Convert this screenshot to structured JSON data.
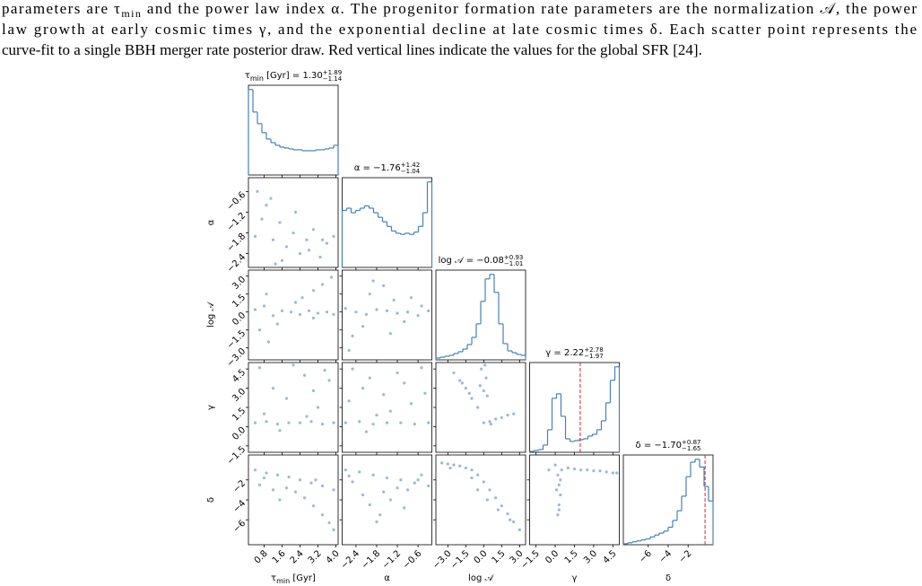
{
  "caption": {
    "line1": {
      "before": "parameters are τ",
      "sub": "min",
      "after": " and the power law index α. The progenitor formation rate parameters are the normalization 𝒜, the power"
    },
    "line2": "law growth at early cosmic times γ, and the exponential decline at late cosmic times δ. Each scatter point represents the",
    "line3": "curve-fit to a single BBH merger rate posterior draw. Red vertical lines indicate the values for the global SFR [24]."
  },
  "chart_data": {
    "type": "corner",
    "color": "#4682b4",
    "truth_color": "#d62728",
    "parameters": [
      {
        "label": {
          "main": "τ",
          "sub": "min",
          "unit": " [Gyr]"
        },
        "title": {
          "value": " = 1.30",
          "plus": "+1.89",
          "minus": "−1.14"
        },
        "lim": [
          0.1,
          4.1
        ],
        "ticks": [
          0.8,
          1.6,
          2.4,
          3.2,
          {
            "value": 4,
            "label": "4.0"
          }
        ],
        "bins": [
          0.1,
          0.3,
          0.5,
          0.7,
          0.9,
          1.1,
          1.3,
          1.5,
          1.7,
          1.9,
          2.1,
          2.3,
          2.5,
          2.7,
          2.9,
          3.1,
          3.3,
          3.5,
          3.7,
          3.9,
          4.1
        ],
        "counts": [
          95,
          70,
          57,
          47,
          40,
          36,
          33,
          31,
          30,
          29,
          28,
          28,
          27,
          27,
          27,
          28,
          28,
          29,
          30,
          33
        ],
        "pairs": []
      },
      {
        "label": {
          "main": "α"
        },
        "title": {
          "value": " = −1.76",
          "plus": "+1.42",
          "minus": "−1.04"
        },
        "lim": [
          -2.8,
          -0.2
        ],
        "ticks": [
          {
            "value": -2.4,
            "label": "−2.4"
          },
          {
            "value": -1.8,
            "label": "−1.8"
          },
          {
            "value": -1.2,
            "label": "−1.2"
          },
          {
            "value": -0.6,
            "label": "−0.6"
          }
        ],
        "bins": [
          -2.8,
          -2.67,
          -2.54,
          -2.41,
          -2.28,
          -2.15,
          -2.02,
          -1.89,
          -1.76,
          -1.63,
          -1.5,
          -1.37,
          -1.24,
          -1.11,
          -0.98,
          -0.85,
          -0.72,
          -0.59,
          -0.46,
          -0.33,
          -0.2
        ],
        "counts": [
          50,
          52,
          48,
          50,
          52,
          54,
          52,
          48,
          44,
          40,
          36,
          32,
          30,
          29,
          30,
          29,
          31,
          36,
          48,
          75
        ],
        "pairs": [
          {
            "x": [
              0.5,
              0.9,
              1.2,
              1.5,
              1.8,
              2.1,
              2.4,
              2.7,
              3.0,
              3.3,
              3.6,
              3.9,
              0.7,
              1.1,
              1.6,
              2.2,
              2.8,
              3.4,
              0.4,
              1.3
            ],
            "y": [
              -0.6,
              -1.0,
              -2.0,
              -1.5,
              -2.2,
              -1.8,
              -2.4,
              -2.0,
              -1.7,
              -2.5,
              -2.1,
              -1.9,
              -1.4,
              -0.8,
              -2.6,
              -1.2,
              -2.3,
              -2.0,
              -1.9,
              -2.7
            ]
          }
        ]
      },
      {
        "label": {
          "main": "log 𝒜"
        },
        "title": {
          "value": " = −0.08",
          "plus": "+0.93",
          "minus": "−1.01"
        },
        "lim": [
          -4,
          3.5
        ],
        "ticks": [
          {
            "value": -3,
            "label": "−3.0"
          },
          {
            "value": -1.5,
            "label": "−1.5"
          },
          {
            "value": 0,
            "label": "0.0"
          },
          1.5,
          {
            "value": 3,
            "label": "3.0"
          }
        ],
        "bins": [
          -4,
          -3.625,
          -3.25,
          -2.875,
          -2.5,
          -2.125,
          -1.75,
          -1.375,
          -1,
          -0.625,
          -0.25,
          0.125,
          0.5,
          0.875,
          1.25,
          1.625,
          2,
          2.375,
          2.75,
          3.125,
          3.5
        ],
        "counts": [
          2,
          3,
          4,
          5,
          7,
          9,
          12,
          17,
          25,
          40,
          65,
          90,
          95,
          75,
          40,
          18,
          10,
          8,
          6,
          5
        ],
        "pairs": [
          {
            "x": [
              0.4,
              0.8,
              1.2,
              1.6,
              2.0,
              2.4,
              2.8,
              3.2,
              3.6,
              3.9,
              2.5,
              3.0,
              3.4,
              3.8,
              0.6,
              1.0,
              1.4,
              2.2,
              0.9,
              3.0
            ],
            "y": [
              0.2,
              0.5,
              -0.3,
              0.1,
              0.0,
              -0.2,
              0.1,
              -0.1,
              0.0,
              -0.2,
              1.2,
              1.8,
              2.3,
              2.9,
              -1.5,
              -2.5,
              -1.0,
              0.8,
              1.5,
              -0.5
            ]
          },
          {
            "x": [
              -2.7,
              -2.4,
              -2.1,
              -1.8,
              -1.5,
              -1.2,
              -0.9,
              -0.6,
              -0.3,
              -2.0,
              -1.6,
              -1.3,
              -2.5,
              -1.0,
              -0.5,
              -2.2,
              -1.9,
              -1.4,
              -0.8,
              -2.6
            ],
            "y": [
              0.3,
              0.0,
              -0.2,
              0.2,
              0.1,
              -0.1,
              0.0,
              -0.3,
              0.1,
              1.5,
              2.2,
              1.0,
              -2.0,
              -0.8,
              0.5,
              -1.2,
              2.6,
              -1.8,
              1.2,
              -3.2
            ]
          }
        ]
      },
      {
        "label": {
          "main": "γ"
        },
        "title": {
          "value": " = 2.22",
          "plus": "+2.78",
          "minus": "−1.97"
        },
        "lim": [
          -2,
          5
        ],
        "ticks": [
          {
            "value": -1.5,
            "label": "−1.5"
          },
          {
            "value": 0,
            "label": "0.0"
          },
          1.5,
          {
            "value": 3,
            "label": "3.0"
          },
          4.5
        ],
        "bins": [
          -2,
          -1.65,
          -1.3,
          -0.95,
          -0.6,
          -0.25,
          0.1,
          0.45,
          0.8,
          1.15,
          1.5,
          1.85,
          2.2,
          2.55,
          2.9,
          3.25,
          3.6,
          3.95,
          4.3,
          4.65,
          5
        ],
        "counts": [
          1,
          2,
          3,
          8,
          25,
          60,
          65,
          40,
          15,
          12,
          13,
          14,
          15,
          18,
          20,
          25,
          35,
          55,
          80,
          95
        ],
        "truth": 1.95,
        "pairs": [
          {
            "x": [
              0.4,
              0.9,
              1.4,
              1.9,
              2.4,
              2.9,
              3.4,
              3.9,
              0.6,
              1.2,
              1.8,
              2.6,
              3.2,
              3.7,
              0.8,
              2.1,
              3.0,
              1.5,
              2.7,
              3.5
            ],
            "y": [
              0.3,
              0.4,
              0.2,
              0.3,
              0.3,
              0.4,
              0.2,
              0.3,
              4.6,
              3.0,
              2.2,
              4.0,
              1.5,
              3.6,
              1.0,
              4.8,
              2.8,
              -0.3,
              0.8,
              4.4
            ]
          },
          {
            "x": [
              -2.7,
              -2.3,
              -1.9,
              -1.5,
              -1.1,
              -0.7,
              -0.3,
              -2.5,
              -2.0,
              -1.6,
              -1.2,
              -0.8,
              -2.2,
              -1.4,
              -0.5,
              -1.8,
              -2.6,
              -1.0,
              -0.4,
              -2.1
            ],
            "y": [
              0.3,
              0.4,
              0.2,
              0.3,
              0.3,
              0.2,
              0.3,
              4.5,
              3.8,
              2.5,
              4.2,
              1.8,
              3.0,
              1.2,
              4.6,
              0.9,
              2.0,
              3.4,
              2.6,
              -0.4
            ]
          },
          {
            "x": [
              -2.5,
              -2.0,
              -1.5,
              -1.0,
              -0.5,
              0.0,
              0.5,
              1.0,
              1.5,
              2.0,
              2.5,
              -0.2,
              0.2,
              0.0,
              -0.3,
              0.3,
              0.1,
              -1.8,
              -1.2,
              0.6
            ],
            "y": [
              4.2,
              3.6,
              3.0,
              2.2,
              1.5,
              0.3,
              0.4,
              0.6,
              0.7,
              0.9,
              1.0,
              4.5,
              3.8,
              2.8,
              3.2,
              2.4,
              4.8,
              3.4,
              2.6,
              0.2
            ]
          }
        ]
      },
      {
        "label": {
          "main": "δ"
        },
        "title": {
          "value": " = −1.70",
          "plus": "+0.87",
          "minus": "−1.65"
        },
        "lim": [
          -8.5,
          0.5
        ],
        "ticks": [
          {
            "value": -6,
            "label": "−6"
          },
          {
            "value": -4,
            "label": "−4"
          },
          {
            "value": -2,
            "label": "−2"
          }
        ],
        "bins": [
          -8.5,
          -8.05,
          -7.6,
          -7.15,
          -6.7,
          -6.25,
          -5.8,
          -5.35,
          -4.9,
          -4.45,
          -4,
          -3.55,
          -3.1,
          -2.65,
          -2.2,
          -1.75,
          -1.3,
          -0.85,
          -0.4,
          0.05,
          0.5
        ],
        "counts": [
          1,
          2,
          3,
          4,
          5,
          6,
          8,
          10,
          12,
          14,
          18,
          25,
          35,
          50,
          70,
          85,
          88,
          80,
          60,
          45
        ],
        "truth": -0.3,
        "pairs": [
          {
            "x": [
              0.4,
              0.9,
              1.4,
              1.9,
              2.4,
              2.9,
              3.4,
              3.9,
              2.6,
              3.0,
              3.4,
              3.7,
              3.9,
              0.6,
              1.2,
              1.8,
              2.2,
              0.8,
              1.5,
              3.1
            ],
            "y": [
              -1.0,
              -1.3,
              -1.5,
              -1.7,
              -2.0,
              -2.3,
              -2.6,
              -3.0,
              -3.8,
              -4.6,
              -5.5,
              -6.3,
              -7.0,
              -2.5,
              -3.0,
              -2.8,
              -3.2,
              -1.8,
              -4.0,
              -2.0
            ]
          },
          {
            "x": [
              -2.7,
              -2.3,
              -1.9,
              -1.5,
              -1.1,
              -0.7,
              -0.3,
              -2.0,
              -1.7,
              -1.4,
              -2.5,
              -0.9,
              -0.5,
              -1.8,
              -2.2,
              -1.2,
              -0.6,
              -1.6,
              -2.6,
              -1.0
            ],
            "y": [
              -1.0,
              -1.2,
              -1.5,
              -1.8,
              -2.0,
              -2.3,
              -2.6,
              -4.5,
              -5.5,
              -4.0,
              -2.2,
              -3.0,
              -1.5,
              -6.2,
              -3.5,
              -2.8,
              -2.0,
              -3.2,
              -1.6,
              -4.8
            ]
          },
          {
            "x": [
              -3.5,
              -3.0,
              -2.5,
              -2.0,
              -1.5,
              -1.0,
              -0.5,
              0.0,
              0.5,
              1.0,
              1.5,
              2.0,
              2.5,
              3.0,
              -1.0,
              -0.5,
              0.3,
              1.2,
              2.2,
              -2.8
            ],
            "y": [
              -0.3,
              -0.4,
              -0.5,
              -0.6,
              -0.8,
              -1.0,
              -1.5,
              -2.2,
              -3.0,
              -3.8,
              -4.6,
              -5.4,
              -6.2,
              -7.0,
              -1.8,
              -3.0,
              -4.0,
              -5.0,
              -6.0,
              -0.8
            ]
          },
          {
            "x": [
              0.0,
              0.2,
              0.3,
              0.4,
              0.3,
              0.2,
              0.5,
              1.0,
              1.5,
              2.0,
              2.5,
              3.0,
              3.5,
              4.0,
              4.5,
              4.8,
              0.1,
              0.4,
              0.3,
              -0.5
            ],
            "y": [
              -0.5,
              -1.5,
              -2.5,
              -3.5,
              -4.5,
              -5.5,
              -1.0,
              -0.8,
              -0.9,
              -1.0,
              -1.0,
              -1.1,
              -1.1,
              -1.2,
              -1.3,
              -1.3,
              -3.0,
              -2.0,
              -5.0,
              -1.0
            ]
          }
        ]
      }
    ]
  }
}
